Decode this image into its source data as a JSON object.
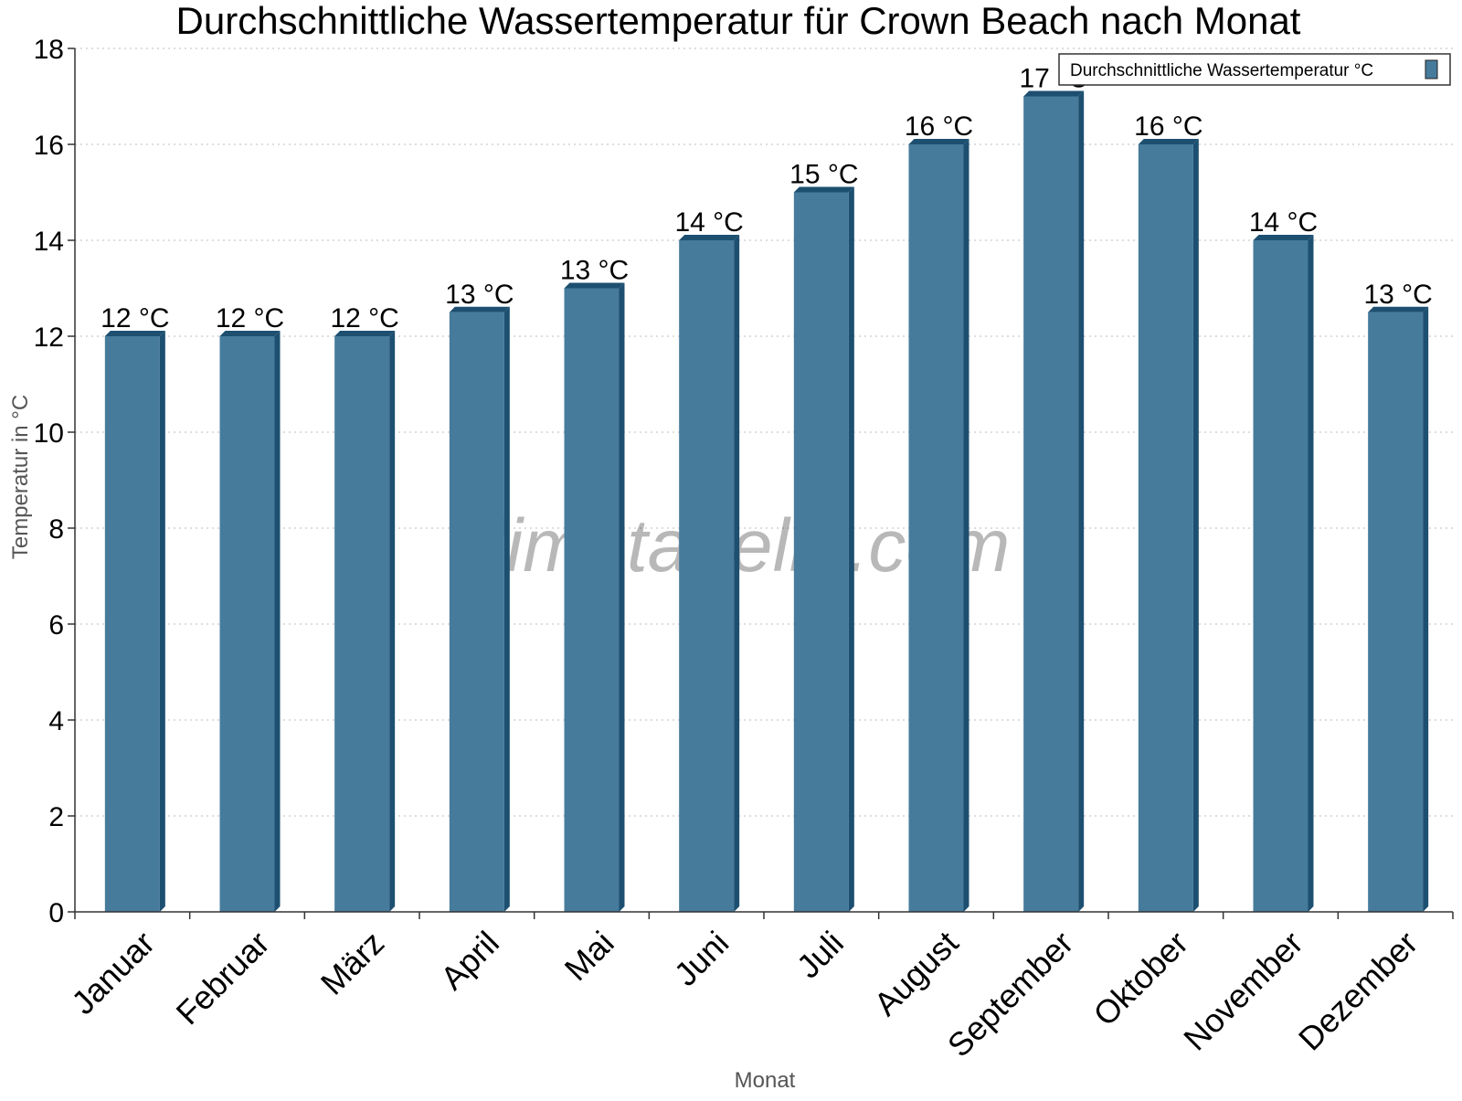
{
  "chart_data": {
    "type": "bar",
    "title": "Durchschnittliche Wassertemperatur für Crown Beach nach Monat",
    "xlabel": "Monat",
    "ylabel": "Temperatur in °C",
    "categories": [
      "Januar",
      "Februar",
      "März",
      "April",
      "Mai",
      "Juni",
      "Juli",
      "August",
      "September",
      "Oktober",
      "November",
      "Dezember"
    ],
    "series": [
      {
        "name": "Durchschnittliche Wassertemperatur °C",
        "values": [
          12,
          12,
          12,
          12.5,
          13,
          14,
          15,
          16,
          17,
          16,
          14,
          12.5
        ],
        "data_labels": [
          "12 °C",
          "12 °C",
          "12 °C",
          "13 °C",
          "13 °C",
          "14 °C",
          "15 °C",
          "16 °C",
          "17 °C",
          "16 °C",
          "14 °C",
          "13 °C"
        ]
      }
    ],
    "ylim": [
      0,
      18
    ],
    "yticks": [
      0,
      2,
      4,
      6,
      8,
      10,
      12,
      14,
      16,
      18
    ],
    "grid": true,
    "legend_position": "top-right",
    "watermark": "klimatabelle.com",
    "colors": {
      "bar": "#467b9c",
      "bar_shade": "#1d4f70",
      "grid": "#bbbbbb",
      "axis": "#333333"
    }
  }
}
